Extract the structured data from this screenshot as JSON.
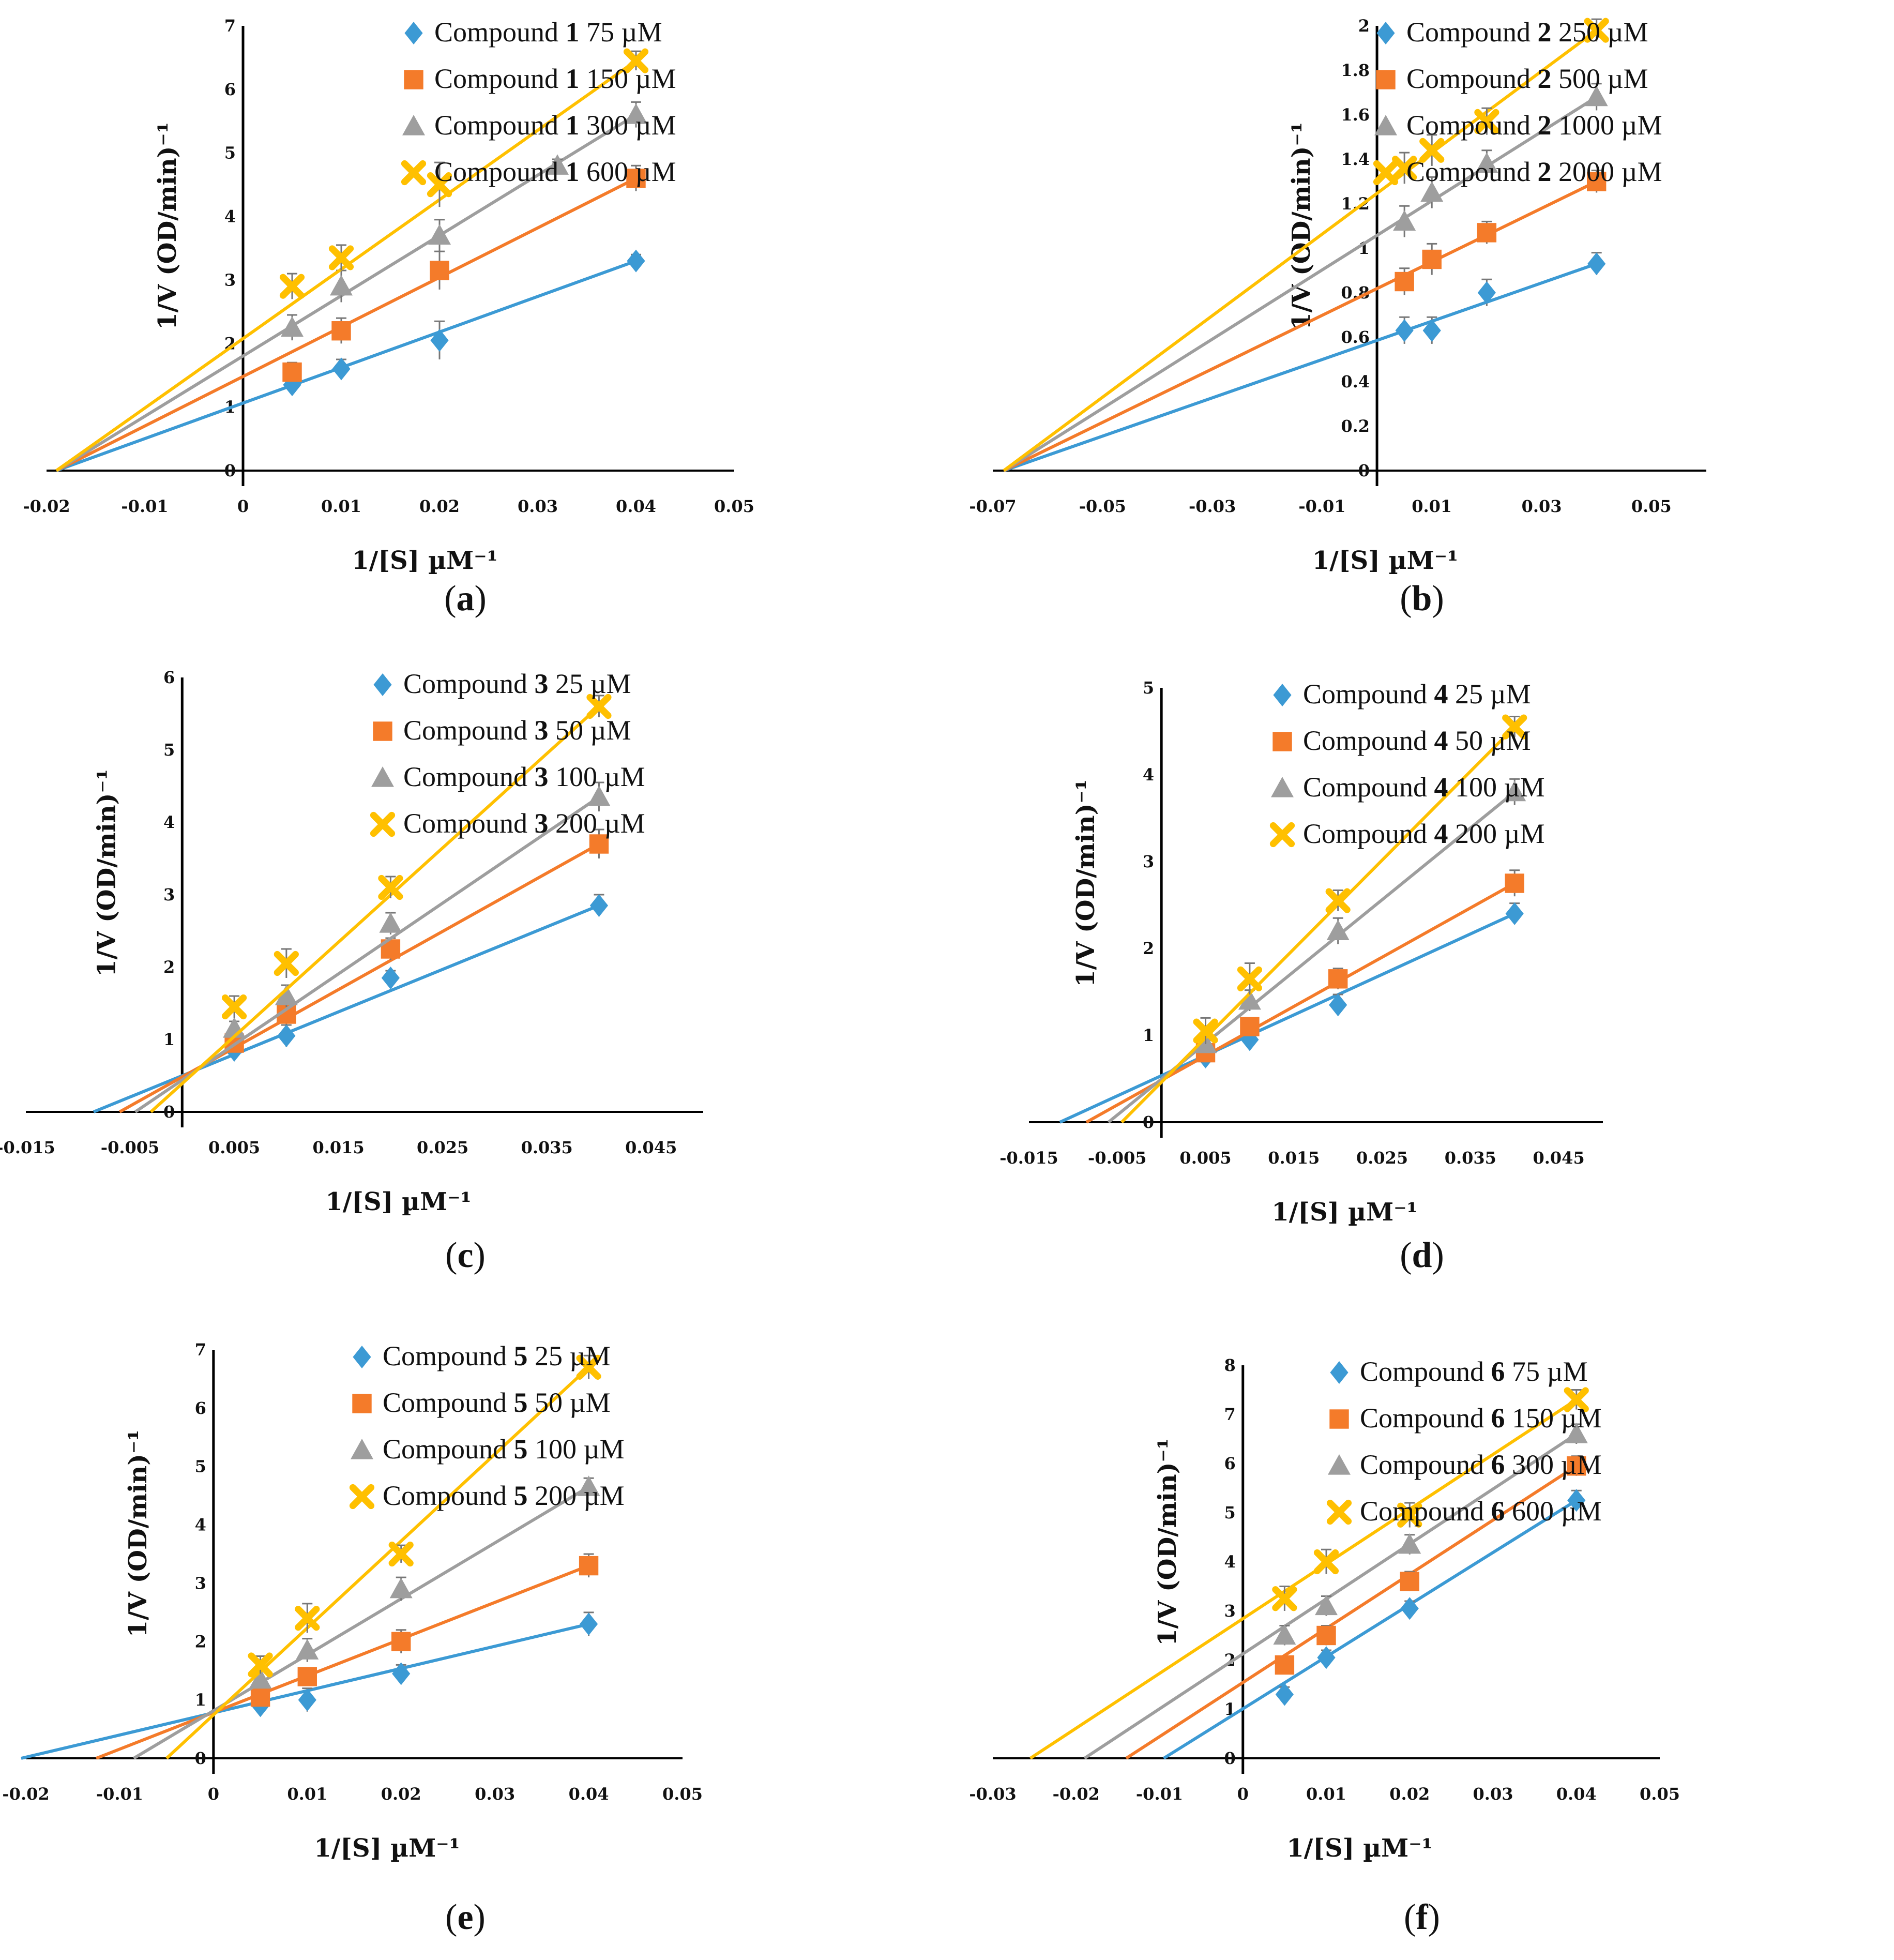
{
  "colors": {
    "series": [
      "#3C9AD4",
      "#F47B2A",
      "#9E9E9E",
      "#FFC000"
    ],
    "axis": "#000000",
    "text": "#111111"
  },
  "chart_data": [
    {
      "panel": "a",
      "type": "line",
      "caption": "(a)",
      "xlabel": "1/[S] µM⁻¹",
      "ylabel": "1/V (OD/min)⁻¹",
      "xlim": [
        -0.02,
        0.05
      ],
      "ylim": [
        0,
        7
      ],
      "xticks": [
        "-0.02",
        "-0.01",
        "0",
        "0.01",
        "0.02",
        "0.03",
        "0.04",
        "0.05"
      ],
      "yticks": [
        "0",
        "1",
        "2",
        "3",
        "4",
        "5",
        "6",
        "7"
      ],
      "legend_position": "top-right",
      "series": [
        {
          "compound": "Compound",
          "number": "1",
          "conc": "75 µM",
          "marker": "diamond",
          "x": [
            0.005,
            0.01,
            0.02,
            0.04
          ],
          "y": [
            1.35,
            1.6,
            2.05,
            3.3
          ],
          "err": [
            0.12,
            0.15,
            0.3,
            0.1
          ],
          "line": [
            [
              -0.019,
              0
            ],
            [
              0.04,
              3.3
            ]
          ]
        },
        {
          "compound": "Compound",
          "number": "1",
          "conc": "150 µM",
          "marker": "square",
          "x": [
            0.005,
            0.01,
            0.02,
            0.04
          ],
          "y": [
            1.55,
            2.2,
            3.15,
            4.6
          ],
          "err": [
            0.15,
            0.2,
            0.3,
            0.2
          ],
          "line": [
            [
              -0.019,
              0
            ],
            [
              0.04,
              4.6
            ]
          ]
        },
        {
          "compound": "Compound",
          "number": "1",
          "conc": "300 µM",
          "marker": "triangle",
          "x": [
            0.005,
            0.01,
            0.02,
            0.032,
            0.04
          ],
          "y": [
            2.25,
            2.9,
            3.7,
            4.8,
            5.6
          ],
          "err": [
            0.2,
            0.25,
            0.25,
            0.1,
            0.2
          ],
          "line": [
            [
              -0.019,
              0
            ],
            [
              0.04,
              5.6
            ]
          ]
        },
        {
          "compound": "Compound",
          "number": "1",
          "conc": "600 µM",
          "marker": "x",
          "x": [
            0.005,
            0.01,
            0.02,
            0.04
          ],
          "y": [
            2.9,
            3.35,
            4.5,
            6.45
          ],
          "err": [
            0.2,
            0.2,
            0.35,
            0.15
          ],
          "line": [
            [
              -0.019,
              0
            ],
            [
              0.04,
              6.45
            ]
          ]
        }
      ]
    },
    {
      "panel": "b",
      "type": "line",
      "caption": "(b)",
      "xlabel": "1/[S] µM⁻¹",
      "ylabel": "1/V (OD/min)⁻¹",
      "xlim": [
        -0.07,
        0.06
      ],
      "ylim": [
        0,
        2
      ],
      "xticks": [
        "-0.07",
        "-0.05",
        "-0.03",
        "-0.01",
        "0.01",
        "0.03",
        "0.05"
      ],
      "xtick_values": [
        -0.07,
        -0.05,
        -0.03,
        -0.01,
        0.01,
        0.03,
        0.05
      ],
      "yticks": [
        "0",
        "0.2",
        "0.4",
        "0.6",
        "0.8",
        "1",
        "1.2",
        "1.4",
        "1.6",
        "1.8",
        "2"
      ],
      "legend_position": "top-right",
      "series": [
        {
          "compound": "Compound",
          "number": "2",
          "conc": "250 µM",
          "marker": "diamond",
          "x": [
            0.005,
            0.01,
            0.02,
            0.04
          ],
          "y": [
            0.63,
            0.63,
            0.8,
            0.93
          ],
          "err": [
            0.06,
            0.06,
            0.06,
            0.05
          ],
          "line": [
            [
              -0.068,
              0
            ],
            [
              0.04,
              0.93
            ]
          ]
        },
        {
          "compound": "Compound",
          "number": "2",
          "conc": "500 µM",
          "marker": "square",
          "x": [
            0.005,
            0.01,
            0.02,
            0.04
          ],
          "y": [
            0.85,
            0.95,
            1.07,
            1.3
          ],
          "err": [
            0.06,
            0.07,
            0.05,
            0.05
          ],
          "line": [
            [
              -0.068,
              0
            ],
            [
              0.04,
              1.3
            ]
          ]
        },
        {
          "compound": "Compound",
          "number": "2",
          "conc": "1000 µM",
          "marker": "triangle",
          "x": [
            0.005,
            0.01,
            0.02,
            0.04
          ],
          "y": [
            1.12,
            1.25,
            1.38,
            1.68
          ],
          "err": [
            0.07,
            0.07,
            0.06,
            0.06
          ],
          "line": [
            [
              -0.068,
              0
            ],
            [
              0.04,
              1.68
            ]
          ]
        },
        {
          "compound": "Compound",
          "number": "2",
          "conc": "2000 µM",
          "marker": "x",
          "x": [
            0.005,
            0.01,
            0.02,
            0.04
          ],
          "y": [
            1.36,
            1.44,
            1.57,
            1.98
          ],
          "err": [
            0.07,
            0.07,
            0.06,
            0.05
          ],
          "line": [
            [
              -0.068,
              0
            ],
            [
              0.04,
              1.98
            ]
          ]
        }
      ]
    },
    {
      "panel": "c",
      "type": "line",
      "caption": "(c)",
      "xlabel": "1/[S] µM⁻¹",
      "ylabel": "1/V (OD/min)⁻¹",
      "xlim": [
        -0.015,
        0.05
      ],
      "ylim": [
        0,
        6
      ],
      "xticks": [
        "-0.015",
        "-0.005",
        "0.005",
        "0.015",
        "0.025",
        "0.035",
        "0.045"
      ],
      "xtick_values": [
        -0.015,
        -0.005,
        0.005,
        0.015,
        0.025,
        0.035,
        0.045
      ],
      "yticks": [
        "0",
        "1",
        "2",
        "3",
        "4",
        "5",
        "6"
      ],
      "legend_position": "top-right",
      "series": [
        {
          "compound": "Compound",
          "number": "3",
          "conc": "25 µM",
          "marker": "diamond",
          "x": [
            0.005,
            0.01,
            0.02,
            0.04
          ],
          "y": [
            0.85,
            1.05,
            1.85,
            2.85
          ],
          "err": [
            0.1,
            0.15,
            0.1,
            0.15
          ],
          "line": [
            [
              -0.0085,
              0
            ],
            [
              0.04,
              2.85
            ]
          ]
        },
        {
          "compound": "Compound",
          "number": "3",
          "conc": "50 µM",
          "marker": "square",
          "x": [
            0.005,
            0.01,
            0.02,
            0.04
          ],
          "y": [
            0.95,
            1.35,
            2.25,
            3.7
          ],
          "err": [
            0.1,
            0.15,
            0.15,
            0.2
          ],
          "line": [
            [
              -0.006,
              0
            ],
            [
              0.04,
              3.7
            ]
          ]
        },
        {
          "compound": "Compound",
          "number": "3",
          "conc": "100 µM",
          "marker": "triangle",
          "x": [
            0.005,
            0.01,
            0.02,
            0.04
          ],
          "y": [
            1.15,
            1.6,
            2.6,
            4.35
          ],
          "err": [
            0.1,
            0.15,
            0.15,
            0.2
          ],
          "line": [
            [
              -0.0045,
              0
            ],
            [
              0.04,
              4.35
            ]
          ]
        },
        {
          "compound": "Compound",
          "number": "3",
          "conc": "200 µM",
          "marker": "x",
          "x": [
            0.005,
            0.01,
            0.02,
            0.04
          ],
          "y": [
            1.45,
            2.05,
            3.1,
            5.6
          ],
          "err": [
            0.15,
            0.2,
            0.15,
            0.15
          ],
          "line": [
            [
              -0.003,
              0
            ],
            [
              0.04,
              5.6
            ]
          ]
        }
      ]
    },
    {
      "panel": "d",
      "type": "line",
      "caption": "(d)",
      "xlabel": "1/[S] µM⁻¹",
      "ylabel": "1/V (OD/min)⁻¹",
      "xlim": [
        -0.015,
        0.05
      ],
      "ylim": [
        0,
        5
      ],
      "xticks": [
        "-0.015",
        "-0.005",
        "0.005",
        "0.015",
        "0.025",
        "0.035",
        "0.045"
      ],
      "xtick_values": [
        -0.015,
        -0.005,
        0.005,
        0.015,
        0.025,
        0.035,
        0.045
      ],
      "yticks": [
        "0",
        "1",
        "2",
        "3",
        "4",
        "5"
      ],
      "legend_position": "top-right",
      "series": [
        {
          "compound": "Compound",
          "number": "4",
          "conc": "25 µM",
          "marker": "diamond",
          "x": [
            0.005,
            0.01,
            0.02,
            0.04
          ],
          "y": [
            0.75,
            0.95,
            1.35,
            2.4
          ],
          "err": [
            0.08,
            0.1,
            0.12,
            0.12
          ],
          "line": [
            [
              -0.0115,
              0
            ],
            [
              0.04,
              2.4
            ]
          ]
        },
        {
          "compound": "Compound",
          "number": "4",
          "conc": "50 µM",
          "marker": "square",
          "x": [
            0.005,
            0.01,
            0.02,
            0.04
          ],
          "y": [
            0.8,
            1.1,
            1.65,
            2.75
          ],
          "err": [
            0.08,
            0.1,
            0.12,
            0.15
          ],
          "line": [
            [
              -0.0085,
              0
            ],
            [
              0.04,
              2.75
            ]
          ]
        },
        {
          "compound": "Compound",
          "number": "4",
          "conc": "100 µM",
          "marker": "triangle",
          "x": [
            0.005,
            0.01,
            0.02,
            0.04
          ],
          "y": [
            0.9,
            1.4,
            2.2,
            3.8
          ],
          "err": [
            0.08,
            0.12,
            0.15,
            0.15
          ],
          "line": [
            [
              -0.006,
              0
            ],
            [
              0.04,
              3.8
            ]
          ]
        },
        {
          "compound": "Compound",
          "number": "4",
          "conc": "200 µM",
          "marker": "x",
          "x": [
            0.005,
            0.01,
            0.02,
            0.04
          ],
          "y": [
            1.05,
            1.65,
            2.55,
            4.55
          ],
          "err": [
            0.15,
            0.18,
            0.12,
            0.12
          ],
          "line": [
            [
              -0.0045,
              0
            ],
            [
              0.04,
              4.55
            ]
          ]
        }
      ]
    },
    {
      "panel": "e",
      "type": "line",
      "caption": "(e)",
      "xlabel": "1/[S] µM⁻¹",
      "ylabel": "1/V (OD/min)⁻¹",
      "xlim": [
        -0.02,
        0.05
      ],
      "ylim": [
        0,
        7
      ],
      "xticks": [
        "-0.02",
        "-0.01",
        "0",
        "0.01",
        "0.02",
        "0.03",
        "0.04",
        "0.05"
      ],
      "yticks": [
        "0",
        "1",
        "2",
        "3",
        "4",
        "5",
        "6",
        "7"
      ],
      "legend_position": "top-right",
      "series": [
        {
          "compound": "Compound",
          "number": "5",
          "conc": "25 µM",
          "marker": "diamond",
          "x": [
            0.005,
            0.01,
            0.02,
            0.04
          ],
          "y": [
            0.9,
            1.0,
            1.45,
            2.3
          ],
          "err": [
            0.15,
            0.2,
            0.15,
            0.2
          ],
          "line": [
            [
              -0.0205,
              0
            ],
            [
              0.04,
              2.3
            ]
          ]
        },
        {
          "compound": "Compound",
          "number": "5",
          "conc": "50 µM",
          "marker": "square",
          "x": [
            0.005,
            0.01,
            0.02,
            0.04
          ],
          "y": [
            1.05,
            1.4,
            2.0,
            3.3
          ],
          "err": [
            0.12,
            0.15,
            0.2,
            0.2
          ],
          "line": [
            [
              -0.0125,
              0
            ],
            [
              0.04,
              3.3
            ]
          ]
        },
        {
          "compound": "Compound",
          "number": "5",
          "conc": "100 µM",
          "marker": "triangle",
          "x": [
            0.005,
            0.01,
            0.02,
            0.04
          ],
          "y": [
            1.35,
            1.85,
            2.9,
            4.65
          ],
          "err": [
            0.15,
            0.2,
            0.2,
            0.15
          ],
          "line": [
            [
              -0.0085,
              0
            ],
            [
              0.04,
              4.65
            ]
          ]
        },
        {
          "compound": "Compound",
          "number": "5",
          "conc": "200 µM",
          "marker": "x",
          "x": [
            0.005,
            0.01,
            0.02,
            0.04
          ],
          "y": [
            1.6,
            2.4,
            3.5,
            6.7
          ],
          "err": [
            0.15,
            0.25,
            0.15,
            0.2
          ],
          "line": [
            [
              -0.005,
              0
            ],
            [
              0.04,
              6.7
            ]
          ]
        }
      ]
    },
    {
      "panel": "f",
      "type": "line",
      "caption": "(f)",
      "xlabel": "1/[S] µM⁻¹",
      "ylabel": "1/V (OD/min)⁻¹",
      "xlim": [
        -0.03,
        0.05
      ],
      "ylim": [
        0,
        8
      ],
      "xticks": [
        "-0.03",
        "-0.02",
        "-0.01",
        "0",
        "0.01",
        "0.02",
        "0.03",
        "0.04",
        "0.05"
      ],
      "yticks": [
        "0",
        "1",
        "2",
        "3",
        "4",
        "5",
        "6",
        "7",
        "8"
      ],
      "legend_position": "top-right",
      "series": [
        {
          "compound": "Compound",
          "number": "6",
          "conc": "75 µM",
          "marker": "diamond",
          "x": [
            0.005,
            0.01,
            0.02,
            0.04
          ],
          "y": [
            1.3,
            2.05,
            3.05,
            5.25
          ],
          "err": [
            0.15,
            0.15,
            0.15,
            0.2
          ],
          "line": [
            [
              -0.0095,
              0
            ],
            [
              0.04,
              5.25
            ]
          ]
        },
        {
          "compound": "Compound",
          "number": "6",
          "conc": "150 µM",
          "marker": "square",
          "x": [
            0.005,
            0.01,
            0.02,
            0.04
          ],
          "y": [
            1.9,
            2.5,
            3.6,
            5.95
          ],
          "err": [
            0.15,
            0.2,
            0.2,
            0.2
          ],
          "line": [
            [
              -0.014,
              0
            ],
            [
              0.04,
              5.95
            ]
          ]
        },
        {
          "compound": "Compound",
          "number": "6",
          "conc": "300 µM",
          "marker": "triangle",
          "x": [
            0.005,
            0.01,
            0.02,
            0.04
          ],
          "y": [
            2.5,
            3.1,
            4.35,
            6.6
          ],
          "err": [
            0.2,
            0.2,
            0.2,
            0.2
          ],
          "line": [
            [
              -0.019,
              0
            ],
            [
              0.04,
              6.6
            ]
          ]
        },
        {
          "compound": "Compound",
          "number": "6",
          "conc": "600 µM",
          "marker": "x",
          "x": [
            0.005,
            0.01,
            0.02,
            0.04
          ],
          "y": [
            3.25,
            4.0,
            4.95,
            7.3
          ],
          "err": [
            0.25,
            0.25,
            0.25,
            0.2
          ],
          "line": [
            [
              -0.0255,
              0
            ],
            [
              0.04,
              7.3
            ]
          ]
        }
      ]
    }
  ]
}
